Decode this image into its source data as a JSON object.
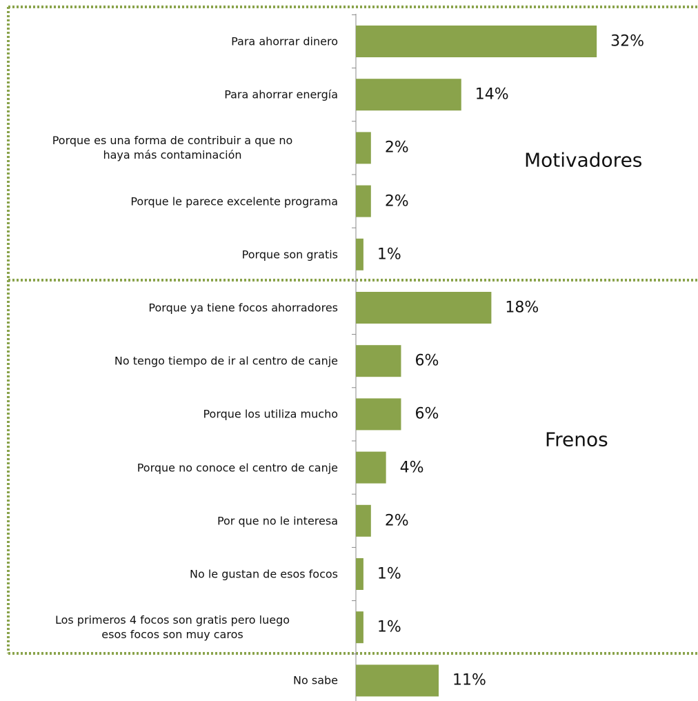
{
  "chart_data": {
    "type": "hbar",
    "categories": [
      "Para ahorrar dinero",
      "Para ahorrar energía",
      "Porque es una forma de contribuir a que no\nhaya más contaminación",
      "Porque le parece excelente programa",
      "Porque son gratis",
      "Porque ya tiene focos ahorradores",
      "No tengo tiempo de ir al centro de canje",
      "Porque los utiliza mucho",
      "Porque no conoce el centro de canje",
      "Por que no le interesa",
      "No le gustan de esos focos",
      "Los primeros 4 focos son gratis pero luego\nesos focos son muy caros",
      "No sabe"
    ],
    "values": [
      32,
      14,
      2,
      2,
      1,
      18,
      6,
      6,
      4,
      2,
      1,
      1,
      11
    ],
    "value_labels": [
      "32%",
      "14%",
      "2%",
      "2%",
      "1%",
      "18%",
      "6%",
      "6%",
      "4%",
      "2%",
      "1%",
      "1%",
      "11%"
    ],
    "color": "#8aa34b",
    "xlim": [
      0,
      45
    ],
    "annotations": [
      "Motivadores",
      "Frenos"
    ]
  }
}
